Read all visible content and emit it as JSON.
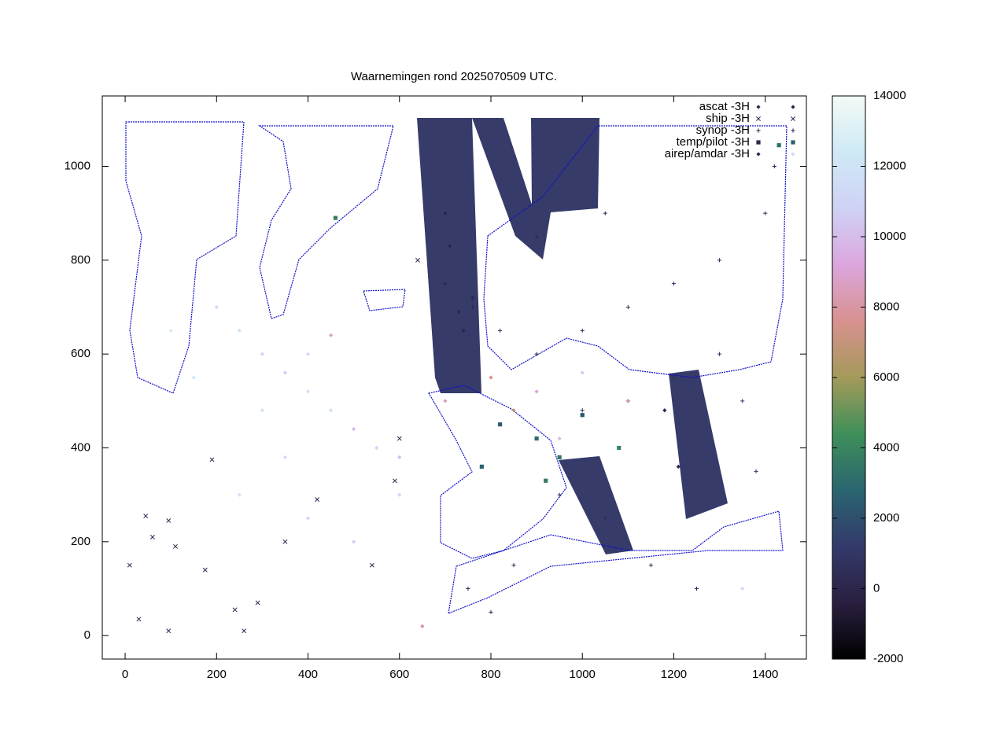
{
  "chart_data": {
    "type": "scatter",
    "title": "Waarnemingen rond 2025070509 UTC.",
    "xlim": [
      -50,
      1490
    ],
    "ylim": [
      -50,
      1150
    ],
    "xticks": [
      0,
      200,
      400,
      600,
      800,
      1000,
      1200,
      1400
    ],
    "yticks": [
      0,
      200,
      400,
      600,
      800,
      1000
    ],
    "cblim": [
      -2000,
      14000
    ],
    "cbticks": [
      -2000,
      0,
      2000,
      4000,
      6000,
      8000,
      10000,
      12000,
      14000
    ],
    "palette": [
      "#000000",
      "#2a1f40",
      "#333a6b",
      "#2a6570",
      "#3f8f5a",
      "#a49a5a",
      "#d8918f",
      "#dba6dd",
      "#cfd2f5",
      "#cfe9f6",
      "#f2fbf5"
    ],
    "legend": "top-right",
    "series": [
      {
        "name": "ascat -3H",
        "marker": "diamond",
        "x": [
          710,
          730,
          740,
          760,
          700,
          1180,
          1210
        ],
        "y": [
          830,
          690,
          650,
          720,
          900,
          480,
          360
        ],
        "z": [
          0,
          0,
          0,
          0,
          0,
          0,
          0
        ]
      },
      {
        "name": "ship -3H",
        "marker": "x",
        "x": [
          10,
          30,
          45,
          60,
          95,
          110,
          175,
          240,
          260,
          290,
          350,
          420,
          540,
          190,
          95,
          590,
          600,
          640
        ],
        "y": [
          150,
          35,
          255,
          210,
          245,
          190,
          140,
          55,
          10,
          70,
          200,
          290,
          150,
          375,
          10,
          330,
          420,
          800
        ],
        "z": [
          0,
          0,
          0,
          0,
          0,
          0,
          0,
          0,
          0,
          0,
          0,
          0,
          0,
          0,
          0,
          0,
          0,
          0
        ]
      },
      {
        "name": "synop -3H",
        "marker": "plus",
        "x": [
          700,
          760,
          820,
          900,
          1000,
          1100,
          1200,
          1300,
          1400,
          1420,
          950,
          1050,
          1150,
          1250,
          850,
          750,
          1350,
          1000,
          1100,
          1380,
          1300,
          1200,
          1050,
          900,
          800
        ],
        "y": [
          750,
          700,
          650,
          600,
          650,
          700,
          750,
          800,
          900,
          1000,
          300,
          250,
          150,
          100,
          150,
          100,
          500,
          480,
          500,
          350,
          600,
          550,
          900,
          850,
          50
        ],
        "z": [
          0,
          0,
          200,
          100,
          300,
          150,
          400,
          300,
          500,
          200,
          800,
          400,
          600,
          300,
          500,
          200,
          1200,
          300,
          500,
          900,
          700,
          600,
          100,
          50,
          300
        ]
      },
      {
        "name": "temp/pilot -3H",
        "marker": "square",
        "x": [
          820,
          900,
          950,
          1000,
          1080,
          460,
          1430,
          780,
          920
        ],
        "y": [
          450,
          420,
          380,
          470,
          400,
          890,
          1045,
          360,
          330
        ],
        "z": [
          2500,
          3000,
          3500,
          2200,
          4000,
          3800,
          3200,
          2800,
          3600
        ]
      },
      {
        "name": "airep/amdar -3H",
        "marker": "diamond",
        "x": [
          200,
          250,
          300,
          350,
          400,
          450,
          500,
          550,
          600,
          300,
          400,
          150,
          600,
          700,
          800,
          900,
          1000,
          1100,
          1350,
          250,
          400,
          500,
          100,
          850,
          950,
          350,
          450,
          650
        ],
        "y": [
          700,
          650,
          600,
          560,
          520,
          480,
          440,
          400,
          380,
          480,
          600,
          550,
          300,
          500,
          550,
          520,
          560,
          500,
          100,
          300,
          250,
          200,
          650,
          480,
          420,
          380,
          640,
          20
        ],
        "z": [
          11500,
          12000,
          11000,
          10500,
          12000,
          11800,
          9800,
          11000,
          10000,
          12000,
          11500,
          12200,
          11000,
          8500,
          7500,
          9000,
          10500,
          8000,
          11500,
          12000,
          11000,
          10500,
          12500,
          7000,
          10000,
          11200,
          8800,
          7800
        ]
      }
    ]
  }
}
